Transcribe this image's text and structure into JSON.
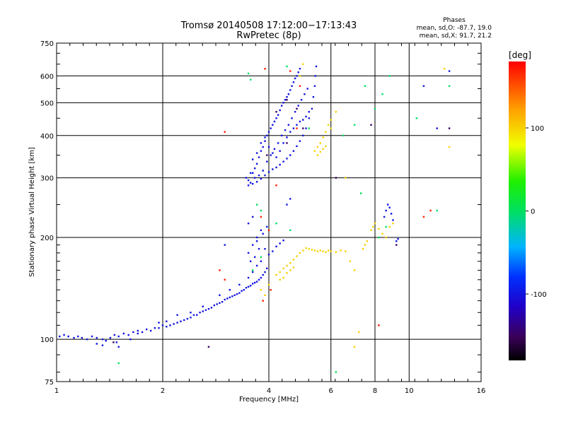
{
  "chart_data": {
    "type": "scatter",
    "title": "Tromsø 20140508 17:12:00−17:13:43",
    "subtitle": "RwPretec (8p)",
    "stats": {
      "heading": "Phases",
      "line_o": "mean, sd,O:  -87.7, 19.0",
      "line_x": "mean, sd,X:  91.7, 21.2"
    },
    "xlabel": "Frequency [MHz]",
    "ylabel": "Stationary phase Virtual Height [km]",
    "xscale": "log2",
    "yscale": "log",
    "xlim": [
      1,
      16
    ],
    "ylim": [
      75,
      750
    ],
    "xticks": [
      1,
      2,
      4,
      6,
      8,
      10,
      16
    ],
    "yticks": [
      75,
      100,
      200,
      300,
      400,
      500,
      600,
      750
    ],
    "grid": true,
    "colorbar": {
      "label": "[deg]",
      "range": [
        -180,
        180
      ],
      "ticks": [
        100,
        0,
        -100
      ]
    },
    "series": [
      {
        "mode": "O",
        "phase_deg": -100,
        "points": [
          [
            1.02,
            102
          ],
          [
            1.05,
            103
          ],
          [
            1.08,
            102
          ],
          [
            1.12,
            101
          ],
          [
            1.15,
            102
          ],
          [
            1.18,
            101
          ],
          [
            1.22,
            100
          ],
          [
            1.26,
            102
          ],
          [
            1.3,
            101
          ],
          [
            1.35,
            100
          ],
          [
            1.38,
            99
          ],
          [
            1.42,
            101
          ],
          [
            1.46,
            103
          ],
          [
            1.5,
            102
          ],
          [
            1.55,
            104
          ],
          [
            1.6,
            103
          ],
          [
            1.65,
            105
          ],
          [
            1.7,
            106
          ],
          [
            1.75,
            105
          ],
          [
            1.8,
            107
          ],
          [
            1.85,
            106
          ],
          [
            1.9,
            108
          ],
          [
            1.95,
            108
          ],
          [
            2.0,
            110
          ],
          [
            2.05,
            109
          ],
          [
            2.1,
            110
          ],
          [
            2.15,
            111
          ],
          [
            2.2,
            112
          ],
          [
            2.25,
            113
          ],
          [
            2.3,
            114
          ],
          [
            2.35,
            115
          ],
          [
            2.4,
            116
          ],
          [
            2.45,
            118
          ],
          [
            2.5,
            118
          ],
          [
            2.55,
            120
          ],
          [
            2.6,
            121
          ],
          [
            2.65,
            122
          ],
          [
            2.7,
            123
          ],
          [
            2.75,
            124
          ],
          [
            2.8,
            126
          ],
          [
            2.85,
            127
          ],
          [
            2.9,
            128
          ],
          [
            2.95,
            129
          ],
          [
            3.0,
            131
          ],
          [
            3.05,
            132
          ],
          [
            3.1,
            133
          ],
          [
            3.15,
            134
          ],
          [
            3.2,
            135
          ],
          [
            3.25,
            136
          ],
          [
            3.3,
            137
          ],
          [
            3.35,
            139
          ],
          [
            3.4,
            140
          ],
          [
            3.45,
            142
          ],
          [
            3.5,
            143
          ],
          [
            3.55,
            144
          ],
          [
            3.6,
            146
          ],
          [
            3.65,
            147
          ],
          [
            3.7,
            148
          ],
          [
            3.75,
            150
          ],
          [
            3.8,
            152
          ],
          [
            3.85,
            155
          ],
          [
            3.9,
            158
          ],
          [
            3.95,
            162
          ],
          [
            1.3,
            97
          ],
          [
            1.35,
            96
          ],
          [
            1.5,
            95
          ],
          [
            1.48,
            98
          ],
          [
            1.62,
            100
          ],
          [
            1.7,
            104
          ],
          [
            1.95,
            112
          ],
          [
            2.05,
            113
          ],
          [
            2.2,
            118
          ],
          [
            2.4,
            120
          ],
          [
            2.6,
            125
          ],
          [
            2.9,
            135
          ],
          [
            3.1,
            140
          ],
          [
            3.3,
            145
          ],
          [
            3.5,
            152
          ],
          [
            3.6,
            158
          ],
          [
            3.7,
            165
          ],
          [
            3.8,
            170
          ],
          [
            3.5,
            180
          ],
          [
            3.6,
            190
          ],
          [
            3.7,
            200
          ],
          [
            3.8,
            210
          ],
          [
            3.5,
            220
          ],
          [
            3.6,
            230
          ],
          [
            3.7,
            195
          ],
          [
            3.9,
            185
          ],
          [
            4.0,
            178
          ],
          [
            4.1,
            182
          ],
          [
            4.2,
            188
          ],
          [
            4.3,
            192
          ],
          [
            4.4,
            196
          ],
          [
            3.55,
            170
          ],
          [
            3.65,
            175
          ],
          [
            3.75,
            185
          ],
          [
            3.85,
            205
          ],
          [
            3.95,
            215
          ],
          [
            3.45,
            300
          ],
          [
            3.5,
            295
          ],
          [
            3.55,
            290
          ],
          [
            3.6,
            310
          ],
          [
            3.65,
            320
          ],
          [
            3.7,
            330
          ],
          [
            3.75,
            345
          ],
          [
            3.8,
            360
          ],
          [
            3.85,
            370
          ],
          [
            3.9,
            385
          ],
          [
            3.95,
            400
          ],
          [
            4.0,
            410
          ],
          [
            4.05,
            420
          ],
          [
            4.1,
            430
          ],
          [
            4.15,
            440
          ],
          [
            4.2,
            450
          ],
          [
            4.25,
            460
          ],
          [
            4.3,
            475
          ],
          [
            4.35,
            490
          ],
          [
            4.4,
            500
          ],
          [
            4.45,
            510
          ],
          [
            4.5,
            520
          ],
          [
            4.55,
            530
          ],
          [
            4.6,
            545
          ],
          [
            4.65,
            560
          ],
          [
            4.7,
            575
          ],
          [
            4.75,
            590
          ],
          [
            4.8,
            600
          ],
          [
            4.85,
            615
          ],
          [
            4.9,
            630
          ],
          [
            3.5,
            285
          ],
          [
            3.6,
            288
          ],
          [
            3.7,
            292
          ],
          [
            3.8,
            298
          ],
          [
            3.9,
            305
          ],
          [
            4.0,
            312
          ],
          [
            4.1,
            318
          ],
          [
            4.2,
            322
          ],
          [
            4.3,
            328
          ],
          [
            4.4,
            335
          ],
          [
            4.5,
            342
          ],
          [
            4.6,
            350
          ],
          [
            4.7,
            360
          ],
          [
            4.8,
            372
          ],
          [
            4.9,
            385
          ],
          [
            5.0,
            400
          ],
          [
            5.1,
            420
          ],
          [
            5.2,
            450
          ],
          [
            5.3,
            480
          ],
          [
            5.35,
            520
          ],
          [
            5.4,
            560
          ],
          [
            5.42,
            600
          ],
          [
            5.45,
            640
          ],
          [
            3.6,
            340
          ],
          [
            3.7,
            355
          ],
          [
            3.8,
            380
          ],
          [
            3.9,
            395
          ],
          [
            4.0,
            370
          ],
          [
            4.1,
            355
          ],
          [
            4.2,
            345
          ],
          [
            4.3,
            360
          ],
          [
            4.4,
            380
          ],
          [
            4.5,
            395
          ],
          [
            4.6,
            410
          ],
          [
            4.7,
            420
          ],
          [
            4.8,
            430
          ],
          [
            4.9,
            440
          ],
          [
            5.0,
            445
          ],
          [
            5.1,
            455
          ],
          [
            5.2,
            470
          ],
          [
            3.55,
            310
          ],
          [
            3.65,
            300
          ],
          [
            3.75,
            305
          ],
          [
            3.85,
            315
          ],
          [
            3.95,
            335
          ],
          [
            4.05,
            350
          ],
          [
            4.15,
            365
          ],
          [
            4.25,
            380
          ],
          [
            4.35,
            400
          ],
          [
            4.45,
            415
          ],
          [
            4.55,
            430
          ],
          [
            4.65,
            450
          ],
          [
            4.75,
            470
          ],
          [
            4.85,
            490
          ],
          [
            4.95,
            510
          ],
          [
            5.05,
            530
          ],
          [
            5.15,
            550
          ],
          [
            8.6,
            240
          ],
          [
            8.7,
            250
          ],
          [
            8.8,
            245
          ],
          [
            8.9,
            235
          ],
          [
            9.0,
            225
          ],
          [
            8.5,
            230
          ],
          [
            9.2,
            195
          ],
          [
            9.3,
            198
          ],
          [
            11.0,
            560
          ],
          [
            12.0,
            420
          ],
          [
            13.0,
            620
          ],
          [
            3.0,
            190
          ],
          [
            4.6,
            260
          ],
          [
            4.5,
            250
          ]
        ]
      },
      {
        "mode": "X",
        "phase_deg": 100,
        "points": [
          [
            4.2,
            155
          ],
          [
            4.3,
            158
          ],
          [
            4.4,
            162
          ],
          [
            4.5,
            165
          ],
          [
            4.6,
            168
          ],
          [
            4.7,
            172
          ],
          [
            4.8,
            176
          ],
          [
            4.9,
            180
          ],
          [
            5.0,
            183
          ],
          [
            5.1,
            186
          ],
          [
            5.2,
            185
          ],
          [
            5.3,
            184
          ],
          [
            5.4,
            183
          ],
          [
            5.5,
            182
          ],
          [
            5.6,
            183
          ],
          [
            5.7,
            182
          ],
          [
            5.8,
            181
          ],
          [
            5.9,
            183
          ],
          [
            6.0,
            182
          ],
          [
            6.2,
            181
          ],
          [
            6.4,
            183
          ],
          [
            6.6,
            182
          ],
          [
            4.3,
            150
          ],
          [
            4.4,
            152
          ],
          [
            4.5,
            157
          ],
          [
            4.6,
            160
          ],
          [
            4.7,
            163
          ],
          [
            5.4,
            360
          ],
          [
            5.5,
            370
          ],
          [
            5.6,
            380
          ],
          [
            5.7,
            395
          ],
          [
            5.8,
            410
          ],
          [
            5.9,
            430
          ],
          [
            6.0,
            445
          ],
          [
            5.5,
            350
          ],
          [
            5.6,
            358
          ],
          [
            5.7,
            365
          ],
          [
            5.8,
            372
          ],
          [
            7.8,
            210
          ],
          [
            7.9,
            215
          ],
          [
            8.0,
            220
          ],
          [
            8.2,
            212
          ],
          [
            8.4,
            205
          ],
          [
            8.6,
            200
          ],
          [
            8.8,
            215
          ],
          [
            9.0,
            220
          ],
          [
            7.5,
            190
          ],
          [
            7.6,
            195
          ],
          [
            5.0,
            650
          ],
          [
            4.9,
            600
          ],
          [
            6.2,
            470
          ],
          [
            6.0,
            420
          ],
          [
            13.0,
            370
          ],
          [
            12.6,
            630
          ],
          [
            6.6,
            300
          ],
          [
            7.2,
            105
          ],
          [
            3.8,
            140
          ],
          [
            3.9,
            135
          ],
          [
            4.0,
            145
          ],
          [
            7.0,
            160
          ],
          [
            6.8,
            170
          ],
          [
            7.4,
            185
          ],
          [
            7.0,
            95
          ]
        ]
      },
      {
        "mode": "mixed",
        "phase_deg": 0,
        "points": [
          [
            3.7,
            250
          ],
          [
            3.8,
            240
          ],
          [
            4.5,
            640
          ],
          [
            5.2,
            420
          ],
          [
            6.5,
            400
          ],
          [
            7.0,
            430
          ],
          [
            7.5,
            560
          ],
          [
            8.0,
            480
          ],
          [
            8.4,
            530
          ],
          [
            8.2,
            200
          ],
          [
            8.6,
            215
          ],
          [
            4.2,
            220
          ],
          [
            4.6,
            210
          ],
          [
            7.3,
            270
          ],
          [
            6.2,
            80
          ],
          [
            1.5,
            85
          ],
          [
            3.5,
            610
          ],
          [
            3.55,
            585
          ],
          [
            10.5,
            450
          ],
          [
            13.0,
            560
          ],
          [
            8.8,
            600
          ],
          [
            12.0,
            240
          ],
          [
            3.6,
            160
          ],
          [
            3.8,
            175
          ]
        ]
      },
      {
        "mode": "mixed",
        "phase_deg": 170,
        "points": [
          [
            3.0,
            410
          ],
          [
            3.9,
            630
          ],
          [
            4.8,
            420
          ],
          [
            4.9,
            560
          ],
          [
            2.9,
            160
          ],
          [
            3.0,
            150
          ],
          [
            4.6,
            620
          ],
          [
            3.8,
            230
          ],
          [
            4.0,
            210
          ],
          [
            11.0,
            230
          ],
          [
            11.5,
            240
          ],
          [
            4.2,
            285
          ],
          [
            8.2,
            110
          ],
          [
            3.85,
            130
          ],
          [
            4.05,
            140
          ]
        ]
      },
      {
        "mode": "mixed",
        "phase_deg": -150,
        "points": [
          [
            5.0,
            420
          ],
          [
            4.8,
            480
          ],
          [
            4.5,
            510
          ],
          [
            4.2,
            470
          ],
          [
            3.95,
            350
          ],
          [
            13.0,
            420
          ],
          [
            9.2,
            190
          ],
          [
            7.8,
            430
          ],
          [
            6.2,
            300
          ],
          [
            2.7,
            95
          ],
          [
            1.45,
            98
          ],
          [
            4.5,
            380
          ]
        ]
      }
    ]
  }
}
